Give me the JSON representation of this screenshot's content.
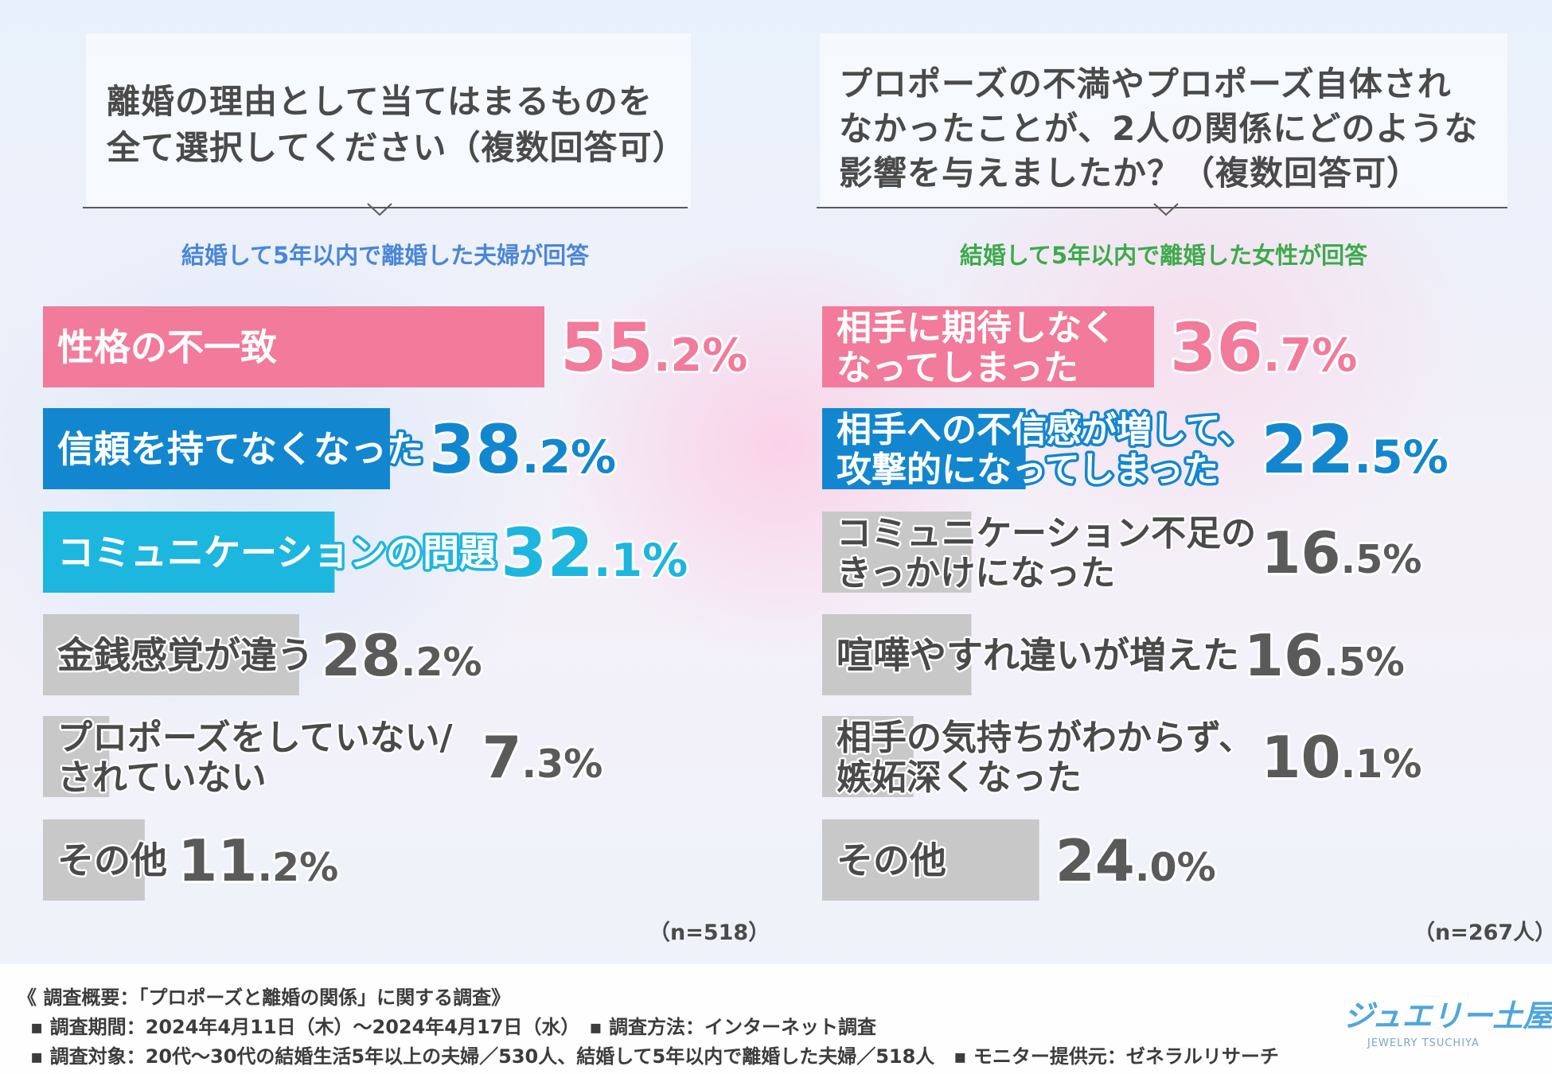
{
  "left": {
    "question_lines": [
      "離婚の理由として当てはまるものを",
      "全て選択してください（複数回答可）"
    ],
    "respondent": "結婚して5年以内で離婚した夫婦が回答",
    "n_note": "（n=518）"
  },
  "right": {
    "question_lines": [
      "プロポーズの不満やプロポーズ自体され",
      "なかったことが、2人の関係にどのような",
      "影響を与えましたか？（複数回答可）"
    ],
    "respondent": "結婚して5年以内で離婚した女性が回答",
    "n_note": "（n=267人）"
  },
  "footer": {
    "line1": "《 調査概要：「プロポーズと離婚の関係」に関する調査》",
    "line2": "▪ 調査期間：2024年4月11日（木）～2024年4月17日（水）　▪ 調査方法：インターネット調査",
    "line3": "▪ 調査対象：20代～30代の結婚生活5年以上の夫婦／530人、結婚して5年以内で離婚した夫婦／518人　▪ モニター提供元：ゼネラルリサーチ",
    "logo_main": "ジュエリー土屋",
    "logo_sub": "JEWELRY TSUCHIYA"
  },
  "colors": {
    "pink": "#f27a9a",
    "blue": "#1287cf",
    "cyan": "#1db6de",
    "gray": "#c8c8c8",
    "left_respondent": "#4a86d8",
    "right_respondent": "#3caa4a",
    "gray_value": "#5a5a5a"
  },
  "chart_data": [
    {
      "type": "bar",
      "orientation": "horizontal",
      "categories": [
        [
          "性格の不一致"
        ],
        [
          "信頼を持てなくなった"
        ],
        [
          "コミュニケーションの問題"
        ],
        [
          "金銭感覚が違う"
        ],
        [
          "プロポーズをしていない/",
          "されていない"
        ],
        [
          "その他"
        ]
      ],
      "values": [
        55.2,
        38.2,
        32.1,
        28.2,
        7.3,
        11.2
      ],
      "value_labels": [
        [
          "55",
          ".2%"
        ],
        [
          "38",
          ".2%"
        ],
        [
          "32",
          ".1%"
        ],
        [
          "28",
          ".2%"
        ],
        [
          "7",
          ".3%"
        ],
        [
          "11",
          ".2%"
        ]
      ],
      "colors": [
        "pink",
        "blue",
        "cyan",
        "gray",
        "gray",
        "gray"
      ]
    },
    {
      "type": "bar",
      "orientation": "horizontal",
      "categories": [
        [
          "相手に期待しなく",
          "なってしまった"
        ],
        [
          "相手への不信感が増して、",
          "攻撃的になってしまった"
        ],
        [
          "コミュニケーション不足の",
          "きっかけになった"
        ],
        [
          "喧嘩やすれ違いが増えた"
        ],
        [
          "相手の気持ちがわからず、",
          "嫉妬深くなった"
        ],
        [
          "その他"
        ]
      ],
      "values": [
        36.7,
        22.5,
        16.5,
        16.5,
        10.1,
        24.0
      ],
      "value_labels": [
        [
          "36",
          ".7%"
        ],
        [
          "22",
          ".5%"
        ],
        [
          "16",
          ".5%"
        ],
        [
          "16",
          ".5%"
        ],
        [
          "10",
          ".1%"
        ],
        [
          "24",
          ".0%"
        ]
      ],
      "colors": [
        "pink",
        "blue",
        "gray",
        "gray",
        "gray",
        "gray"
      ]
    }
  ]
}
